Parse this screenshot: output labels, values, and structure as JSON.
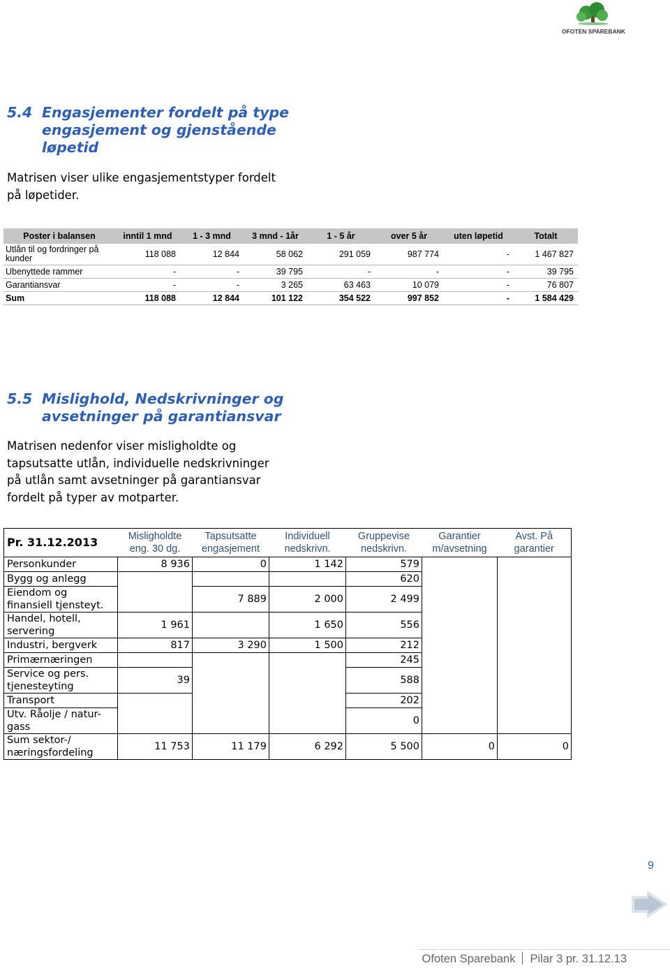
{
  "logo": {
    "name": "OFOTEN SPAREBANK"
  },
  "section_1": {
    "number": "5.4",
    "title_lines": [
      "Engasjementer fordelt på type",
      "engasjement og gjenstående",
      "løpetid"
    ],
    "intro_lines": [
      "Matrisen viser ulike engasjementstyper fordelt",
      "på løpetider."
    ],
    "table": {
      "columns": [
        "Poster i balansen",
        "inntil 1 mnd",
        "1 - 3 mnd",
        "3 mnd - 1år",
        "1 - 5 år",
        "over 5 år",
        "uten løpetid",
        "Totalt"
      ],
      "rows": [
        [
          "Utlån til og fordringer på kunder",
          "118 088",
          "12 844",
          "58 062",
          "291 059",
          "987 774",
          "-",
          "1 467 827"
        ],
        [
          "Ubenyttede rammer",
          "-",
          "-",
          "39 795",
          "-",
          "-",
          "-",
          "39 795"
        ],
        [
          "Garantiansvar",
          "-",
          "-",
          "3 265",
          "63 463",
          "10 079",
          "-",
          "76 807"
        ],
        [
          "Sum",
          "118 088",
          "12 844",
          "101 122",
          "354 522",
          "997 852",
          "-",
          "1 584 429"
        ]
      ]
    }
  },
  "section_2": {
    "number": "5.5",
    "title_lines": [
      "Mislighold, Nedskrivninger og",
      "avsetninger på garantiansvar"
    ],
    "intro_lines": [
      "Matrisen nedenfor viser misligholdte og",
      "tapsutsatte utlån, individuelle nedskrivninger",
      "på utlån samt avsetninger på garantiansvar",
      "fordelt på typer av motparter."
    ],
    "table": {
      "columns": [
        "Pr. 31.12.2013",
        "Misligholdte eng. 30 dg.",
        "Tapsutsatte engasjement",
        "Individuell nedskrivn.",
        "Gruppevise nedskrivn.",
        "Garantier m/avsetning",
        "Avst. På garantier"
      ],
      "rows": [
        [
          "Personkunder",
          "8 936",
          "0",
          "1 142",
          "579",
          null,
          null
        ],
        [
          "Bygg og anlegg",
          null,
          null,
          null,
          "620",
          null,
          null
        ],
        [
          "Eiendom og finansiell tjensteyt.",
          null,
          "7 889",
          "2 000",
          "2 499",
          null,
          null
        ],
        [
          "Handel, hotell, servering",
          "1 961",
          null,
          "1 650",
          "556",
          null,
          null
        ],
        [
          "Industri, bergverk",
          "817",
          "3 290",
          "1 500",
          "212",
          null,
          null
        ],
        [
          "Primærnæringen",
          null,
          null,
          null,
          "245",
          null,
          null
        ],
        [
          "Service og pers. tjenesteyting",
          "39",
          null,
          null,
          "588",
          null,
          null
        ],
        [
          "Transport",
          null,
          null,
          null,
          "202",
          null,
          null
        ],
        [
          "Utv. Råolje / natur-gass",
          null,
          null,
          null,
          "0",
          null,
          null
        ],
        [
          "Sum sektor-/ næringsfordeling",
          "11 753",
          "11 179",
          "6 292",
          "5 500",
          "0",
          "0"
        ]
      ]
    }
  },
  "footer": {
    "page_number": "9",
    "company": "Ofoten Sparebank",
    "document": "Pilar 3 pr. 31.12.13"
  }
}
